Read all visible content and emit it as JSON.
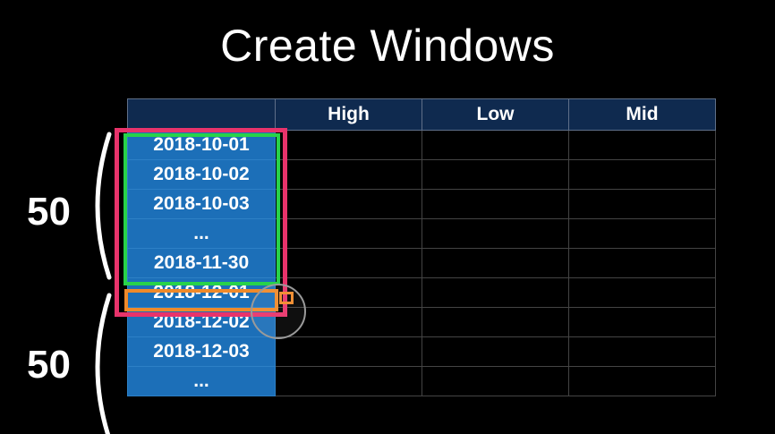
{
  "slide": {
    "title": "Create Windows"
  },
  "table": {
    "headers": [
      "",
      "High",
      "Low",
      "Mid"
    ],
    "rows": [
      [
        "2018-10-01",
        "",
        "",
        ""
      ],
      [
        "2018-10-02",
        "",
        "",
        ""
      ],
      [
        "2018-10-03",
        "",
        "",
        ""
      ],
      [
        "...",
        "",
        "",
        ""
      ],
      [
        "2018-11-30",
        "",
        "",
        ""
      ],
      [
        "2018-12-01",
        "",
        "",
        ""
      ],
      [
        "2018-12-02",
        "",
        "",
        ""
      ],
      [
        "2018-12-03",
        "",
        "",
        ""
      ],
      [
        "...",
        "",
        "",
        ""
      ]
    ]
  },
  "annotations": {
    "window_1_label": "50",
    "window_2_label": "50"
  },
  "colors": {
    "background": "#000000",
    "header_bg": "#0f2a4f",
    "date_cell_bg": "#1c6fb8",
    "window_outline": "#e8336b",
    "inner_window_outline": "#28d24a",
    "target_outline": "#f08a2a"
  }
}
